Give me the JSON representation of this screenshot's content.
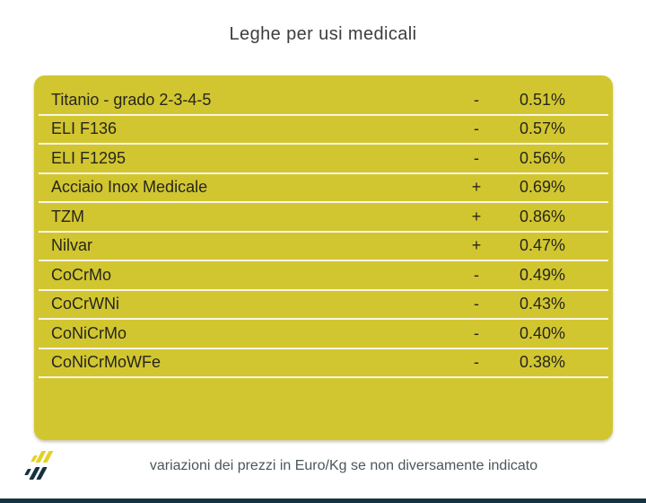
{
  "header": {
    "title": "Leghe per usi medicali"
  },
  "chart_data": {
    "type": "table",
    "title": "Leghe per usi medicali",
    "rows": [
      {
        "name": "Titanio - grado 2-3-4-5",
        "sign": "-",
        "value": "0.51%",
        "variation_pct": -0.51
      },
      {
        "name": "ELI F136",
        "sign": "-",
        "value": "0.57%",
        "variation_pct": -0.57
      },
      {
        "name": "ELI F1295",
        "sign": "-",
        "value": "0.56%",
        "variation_pct": -0.56
      },
      {
        "name": "Acciaio Inox Medicale",
        "sign": "+",
        "value": "0.69%",
        "variation_pct": 0.69
      },
      {
        "name": "TZM",
        "sign": "+",
        "value": "0.86%",
        "variation_pct": 0.86
      },
      {
        "name": "Nilvar",
        "sign": "+",
        "value": "0.47%",
        "variation_pct": 0.47
      },
      {
        "name": "CoCrMo",
        "sign": "-",
        "value": "0.49%",
        "variation_pct": -0.49
      },
      {
        "name": "CoCrWNi",
        "sign": "-",
        "value": "0.43%",
        "variation_pct": -0.43
      },
      {
        "name": "CoNiCrMo",
        "sign": "-",
        "value": "0.40%",
        "variation_pct": -0.4
      },
      {
        "name": "CoNiCrMoWFe",
        "sign": "-",
        "value": "0.38%",
        "variation_pct": -0.38
      }
    ],
    "note": "variazioni dei prezzi in Euro/Kg se non diversamente indicato",
    "layout_hints": {
      "legend": "none",
      "grid": "row-dividers-only"
    }
  },
  "footer": {
    "note": "variazioni dei prezzi in Euro/Kg se non diversamente indicato"
  },
  "colors": {
    "panel": "#d2c630",
    "divider": "#f9f6e6",
    "row_text": "#26261e",
    "title_text": "#3d3d3d",
    "footer_text": "#4c565c",
    "bottom_bar": "#15323f",
    "logo_yellow": "#e3d126",
    "logo_dark": "#14313f"
  }
}
